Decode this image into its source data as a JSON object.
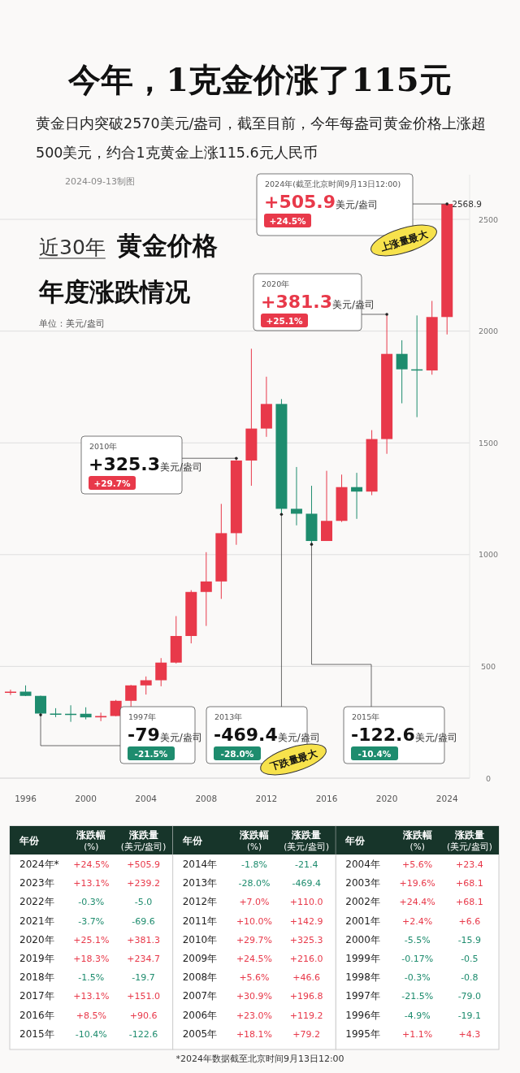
{
  "chart_data": [
    {
      "type": "other",
      "title": "今年，1克金价涨了115元",
      "subtitle": "黄金日内突破2570美元/盎司，截至目前，今年每盎司黄金价格上涨超500美元，约合1克黄金上涨115.6元人民币",
      "annotations": [
        "2024-09-13制图"
      ]
    },
    {
      "type": "candlestick",
      "title": "近30年 黄金价格年度涨跌情况",
      "ylabel": "单位：美元/盎司",
      "x": [
        1995,
        1996,
        1997,
        1998,
        1999,
        2000,
        2001,
        2002,
        2003,
        2004,
        2005,
        2006,
        2007,
        2008,
        2009,
        2010,
        2011,
        2012,
        2013,
        2014,
        2015,
        2016,
        2017,
        2018,
        2019,
        2020,
        2021,
        2022,
        2023,
        2024
      ],
      "ohlc": [
        [
          383,
          396,
          372,
          387
        ],
        [
          387,
          415,
          367,
          368
        ],
        [
          368,
          369,
          283,
          289
        ],
        [
          289,
          313,
          273,
          288
        ],
        [
          288,
          326,
          252,
          288
        ],
        [
          288,
          317,
          263,
          272
        ],
        [
          272,
          293,
          255,
          278
        ],
        [
          278,
          350,
          277,
          346
        ],
        [
          346,
          417,
          320,
          415
        ],
        [
          415,
          455,
          374,
          438
        ],
        [
          438,
          537,
          411,
          517
        ],
        [
          517,
          725,
          513,
          636
        ],
        [
          636,
          841,
          603,
          833
        ],
        [
          833,
          1011,
          681,
          880
        ],
        [
          880,
          1227,
          802,
          1096
        ],
        [
          1096,
          1431,
          1044,
          1421
        ],
        [
          1421,
          1921,
          1308,
          1564
        ],
        [
          1564,
          1796,
          1527,
          1674
        ],
        [
          1674,
          1696,
          1180,
          1205
        ],
        [
          1205,
          1392,
          1131,
          1183
        ],
        [
          1183,
          1308,
          1046,
          1061
        ],
        [
          1061,
          1375,
          1061,
          1151
        ],
        [
          1151,
          1358,
          1146,
          1302
        ],
        [
          1302,
          1366,
          1160,
          1282
        ],
        [
          1282,
          1557,
          1266,
          1517
        ],
        [
          1517,
          2075,
          1451,
          1898
        ],
        [
          1898,
          1959,
          1677,
          1829
        ],
        [
          1829,
          2070,
          1615,
          1824
        ],
        [
          1824,
          2135,
          1805,
          2063
        ],
        [
          2063,
          2568.9,
          1985,
          2568.9
        ]
      ],
      "colors": [
        "#e8394a",
        "#1e8c6e",
        "#1e8c6e",
        "#1e8c6e",
        "#1e8c6e",
        "#1e8c6e",
        "#e8394a",
        "#e8394a",
        "#e8394a",
        "#e8394a",
        "#e8394a",
        "#e8394a",
        "#e8394a",
        "#e8394a",
        "#e8394a",
        "#e8394a",
        "#e8394a",
        "#e8394a",
        "#1e8c6e",
        "#1e8c6e",
        "#1e8c6e",
        "#e8394a",
        "#e8394a",
        "#1e8c6e",
        "#e8394a",
        "#e8394a",
        "#1e8c6e",
        "#1e8c6e",
        "#e8394a",
        "#e8394a"
      ],
      "xlim": [
        1994.3,
        2025.5
      ],
      "xticks": [
        1996,
        2000,
        2004,
        2008,
        2012,
        2016,
        2020,
        2024
      ],
      "ylim": [
        0,
        2700
      ],
      "yticks": [
        0,
        500,
        1000,
        1500,
        2000,
        2500
      ],
      "grid": "y",
      "annotations": [
        "2024年(截至北京时间9月13日12:00)",
        "+505.9美元/盎司",
        "+24.5%",
        "2020年",
        {
          "text": "+381.3美元/盎司",
          "x": 2020,
          "y": 2075
        },
        "+25.1%",
        "2010年",
        {
          "text": "+325.3美元/盎司",
          "x": 2010,
          "y": 1431
        },
        "+29.7%",
        "1997年",
        {
          "text": "-79美元/盎司",
          "x": 1997,
          "y": 283
        },
        "-21.5%",
        "2013年",
        {
          "text": "-469.4美元/盎司",
          "x": 2013,
          "y": 1180
        },
        "-28.0%",
        "2015年",
        {
          "text": "-122.6美元/盎司",
          "x": 2015,
          "y": 1046
        },
        "-10.4%",
        {
          "text": "2568.9",
          "x": 2024,
          "y": 2568.9
        },
        "上涨量最大",
        "下跌量最大"
      ]
    },
    {
      "type": "heatmap",
      "ylabel": "年份",
      "categories": [
        "涨跌幅\n(%)",
        "涨跌量\n(美元/盎司)"
      ],
      "y_categories": [
        "2024年*",
        "2023年",
        "2022年",
        "2021年",
        "2020年",
        "2019年",
        "2018年",
        "2017年",
        "2016年",
        "2015年"
      ],
      "cells": [
        [
          24.5,
          505.9
        ],
        [
          13.1,
          239.2
        ],
        [
          -0.3,
          -5.0
        ],
        [
          -3.7,
          -69.6
        ],
        [
          25.1,
          381.3
        ],
        [
          18.3,
          234.7
        ],
        [
          -1.5,
          -19.7
        ],
        [
          13.1,
          151.0
        ],
        [
          8.5,
          90.6
        ],
        [
          -10.4,
          -122.6
        ]
      ],
      "cell_labels": [
        [
          "+24.5%",
          "+505.9"
        ],
        [
          "+13.1%",
          "+239.2"
        ],
        [
          "-0.3%",
          "-5.0"
        ],
        [
          "-3.7%",
          "-69.6"
        ],
        [
          "+25.1%",
          "+381.3"
        ],
        [
          "+18.3%",
          "+234.7"
        ],
        [
          "-1.5%",
          "-19.7"
        ],
        [
          "+13.1%",
          "+151.0"
        ],
        [
          "+8.5%",
          "+90.6"
        ],
        [
          "-10.4%",
          "-122.6"
        ]
      ]
    },
    {
      "type": "heatmap",
      "ylabel": "年份",
      "categories": [
        "涨跌幅\n(%)",
        "涨跌量\n(美元/盎司)"
      ],
      "y_categories": [
        "2014年",
        "2013年",
        "2012年",
        "2011年",
        "2010年",
        "2009年",
        "2008年",
        "2007年",
        "2006年",
        "2005年"
      ],
      "cells": [
        [
          -1.8,
          -21.4
        ],
        [
          -28.0,
          -469.4
        ],
        [
          7.0,
          110.0
        ],
        [
          10.0,
          142.9
        ],
        [
          29.7,
          325.3
        ],
        [
          24.5,
          216.0
        ],
        [
          5.6,
          46.6
        ],
        [
          30.9,
          196.8
        ],
        [
          23.0,
          119.2
        ],
        [
          18.1,
          79.2
        ]
      ],
      "cell_labels": [
        [
          "-1.8%",
          "-21.4"
        ],
        [
          "-28.0%",
          "-469.4"
        ],
        [
          "+7.0%",
          "+110.0"
        ],
        [
          "+10.0%",
          "+142.9"
        ],
        [
          "+29.7%",
          "+325.3"
        ],
        [
          "+24.5%",
          "+216.0"
        ],
        [
          "+5.6%",
          "+46.6"
        ],
        [
          "+30.9%",
          "+196.8"
        ],
        [
          "+23.0%",
          "+119.2"
        ],
        [
          "+18.1%",
          "+79.2"
        ]
      ]
    },
    {
      "type": "heatmap",
      "ylabel": "年份",
      "categories": [
        "涨跌幅\n(%)",
        "涨跌量\n(美元/盎司)"
      ],
      "y_categories": [
        "2004年",
        "2003年",
        "2002年",
        "2001年",
        "2000年",
        "1999年",
        "1998年",
        "1997年",
        "1996年",
        "1995年"
      ],
      "cells": [
        [
          5.6,
          23.4
        ],
        [
          19.6,
          68.1
        ],
        [
          24.4,
          68.1
        ],
        [
          2.4,
          6.6
        ],
        [
          -5.5,
          -15.9
        ],
        [
          -0.17,
          -0.5
        ],
        [
          -0.3,
          -0.8
        ],
        [
          -21.5,
          -79.0
        ],
        [
          -4.9,
          -19.1
        ],
        [
          1.1,
          4.3
        ]
      ],
      "cell_labels": [
        [
          "+5.6%",
          "+23.4"
        ],
        [
          "+19.6%",
          "+68.1"
        ],
        [
          "+24.4%",
          "+68.1"
        ],
        [
          "+2.4%",
          "+6.6"
        ],
        [
          "-5.5%",
          "-15.9"
        ],
        [
          "-0.17%",
          "-0.5"
        ],
        [
          "-0.3%",
          "-0.8"
        ],
        [
          "-21.5%",
          "-79.0"
        ],
        [
          "-4.9%",
          "-19.1"
        ],
        [
          "+1.1%",
          "+4.3"
        ]
      ],
      "annotations": [
        "*2024年数据截至北京时间9月13日12:00"
      ]
    }
  ]
}
